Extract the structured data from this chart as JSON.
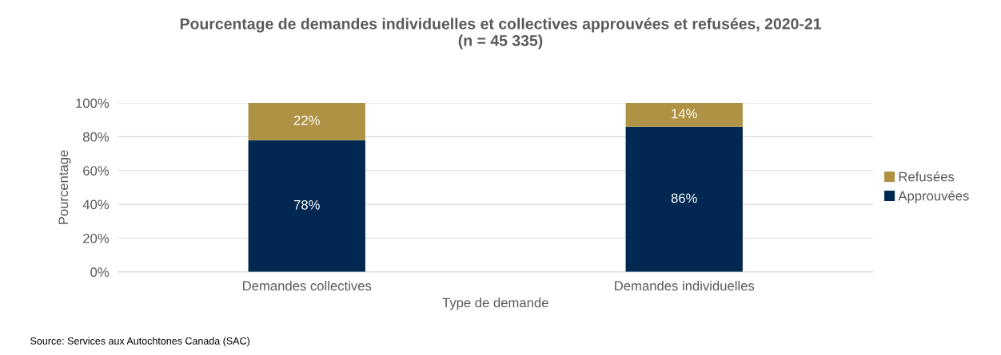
{
  "chart_data": {
    "type": "bar",
    "title": "Pourcentage de demandes individuelles et collectives approuvées et refusées, 2020-21\n(n = 45 335)",
    "xlabel": "Type de demande",
    "ylabel": "Pourcentage",
    "categories": [
      "Demandes collectives",
      "Demandes individuelles"
    ],
    "series": [
      {
        "name": "Approuvées",
        "color": "#002850",
        "values": [
          78,
          86
        ],
        "value_labels": [
          "78%",
          "86%"
        ]
      },
      {
        "name": "Refusées",
        "color": "#b09245",
        "values": [
          22,
          14
        ],
        "value_labels": [
          "22%",
          "14%"
        ]
      }
    ],
    "stacked": true,
    "ylim": [
      0,
      100
    ],
    "yticks": [
      {
        "value": 0,
        "label": "0%"
      },
      {
        "value": 20,
        "label": "20%"
      },
      {
        "value": 40,
        "label": "40%"
      },
      {
        "value": 60,
        "label": "60%"
      },
      {
        "value": 80,
        "label": "80%"
      },
      {
        "value": 100,
        "label": "100%"
      }
    ],
    "grid": "y",
    "legend": "right",
    "annotations": [
      "Source: Services aux Autochtones Canada (SAC)"
    ]
  }
}
